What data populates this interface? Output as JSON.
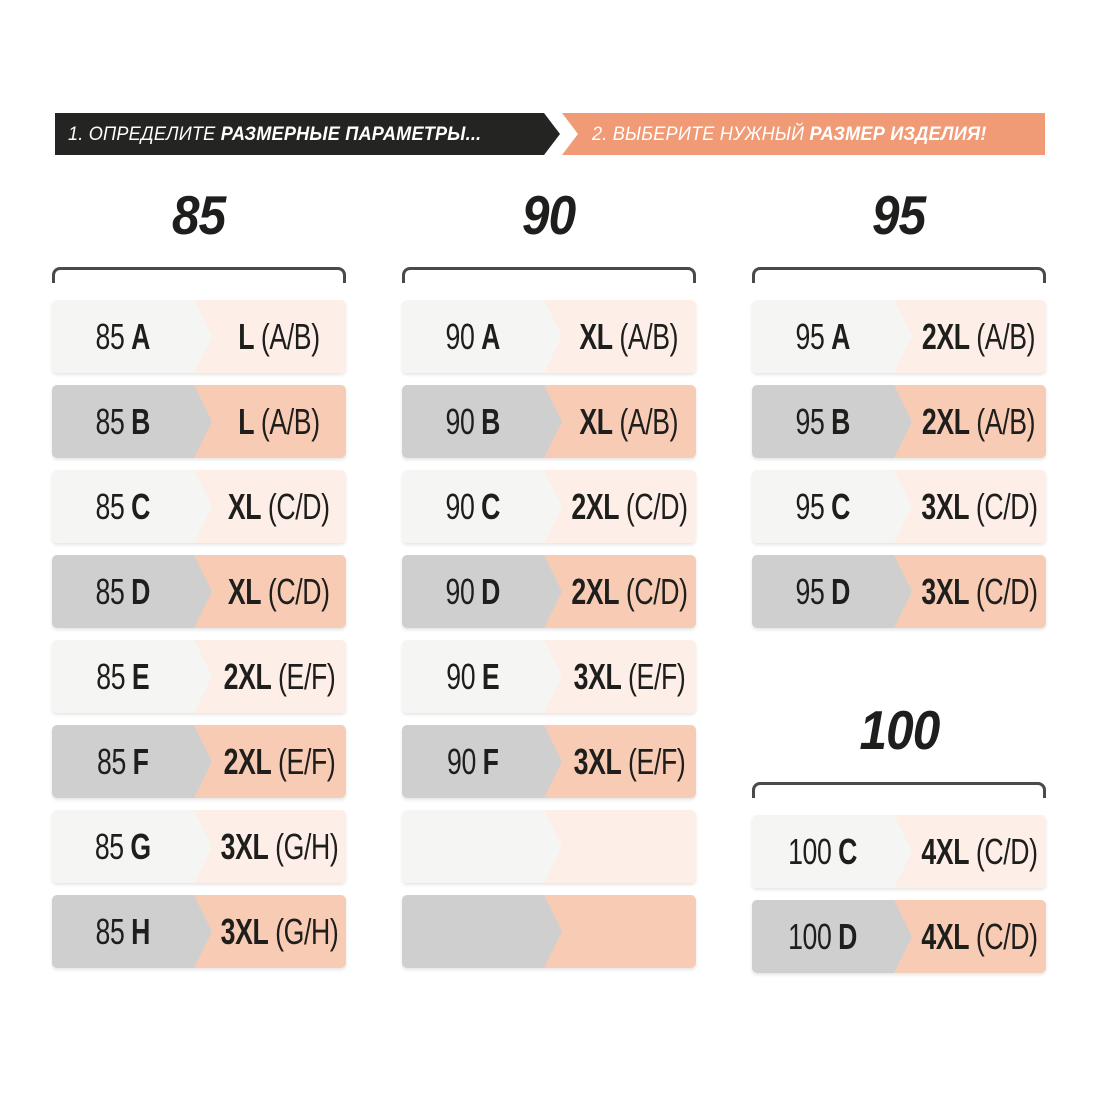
{
  "banner": {
    "step1": {
      "prefix": "1. ОПРЕДЕЛИТЕ ",
      "bold": "РАЗМЕРНЫЕ ПАРАМЕТРЫ..."
    },
    "step2": {
      "prefix": "2. ВЫБЕРИТЕ НУЖНЫЙ ",
      "bold": "РАЗМЕР ИЗДЕЛИЯ!"
    }
  },
  "colors": {
    "step1_bg": "#242422",
    "step2_bg": "#f09a76",
    "row_light_left": "#f5f5f4",
    "row_light_right": "#fdeee8",
    "row_dark_left": "#cfcfcf",
    "row_dark_right": "#f8cbb5",
    "text": "#1e1e1c",
    "bracket": "#4a4a4a"
  },
  "chart_data": {
    "type": "table",
    "title": "Таблица соответствия размеров",
    "groups": [
      {
        "header": "85",
        "rows": [
          {
            "band": "85",
            "cup": "A",
            "size": "L",
            "range": "(A/B)"
          },
          {
            "band": "85",
            "cup": "B",
            "size": "L",
            "range": "(A/B)"
          },
          {
            "band": "85",
            "cup": "C",
            "size": "XL",
            "range": "(C/D)"
          },
          {
            "band": "85",
            "cup": "D",
            "size": "XL",
            "range": "(C/D)"
          },
          {
            "band": "85",
            "cup": "E",
            "size": "2XL",
            "range": "(E/F)"
          },
          {
            "band": "85",
            "cup": "F",
            "size": "2XL",
            "range": "(E/F)"
          },
          {
            "band": "85",
            "cup": "G",
            "size": "3XL",
            "range": "(G/H)"
          },
          {
            "band": "85",
            "cup": "H",
            "size": "3XL",
            "range": "(G/H)"
          }
        ]
      },
      {
        "header": "90",
        "rows": [
          {
            "band": "90",
            "cup": "A",
            "size": "XL",
            "range": "(A/B)"
          },
          {
            "band": "90",
            "cup": "B",
            "size": "XL",
            "range": "(A/B)"
          },
          {
            "band": "90",
            "cup": "C",
            "size": "2XL",
            "range": "(C/D)"
          },
          {
            "band": "90",
            "cup": "D",
            "size": "2XL",
            "range": "(C/D)"
          },
          {
            "band": "90",
            "cup": "E",
            "size": "3XL",
            "range": "(E/F)"
          },
          {
            "band": "90",
            "cup": "F",
            "size": "3XL",
            "range": "(E/F)"
          },
          {
            "band": "",
            "cup": "",
            "size": "",
            "range": ""
          },
          {
            "band": "",
            "cup": "",
            "size": "",
            "range": ""
          }
        ]
      },
      {
        "header": "95",
        "rows": [
          {
            "band": "95",
            "cup": "A",
            "size": "2XL",
            "range": "(A/B)"
          },
          {
            "band": "95",
            "cup": "B",
            "size": "2XL",
            "range": "(A/B)"
          },
          {
            "band": "95",
            "cup": "C",
            "size": "3XL",
            "range": "(C/D)"
          },
          {
            "band": "95",
            "cup": "D",
            "size": "3XL",
            "range": "(C/D)"
          }
        ]
      },
      {
        "header": "100",
        "rows": [
          {
            "band": "100",
            "cup": "C",
            "size": "4XL",
            "range": "(C/D)"
          },
          {
            "band": "100",
            "cup": "D",
            "size": "4XL",
            "range": "(C/D)"
          }
        ]
      }
    ]
  }
}
